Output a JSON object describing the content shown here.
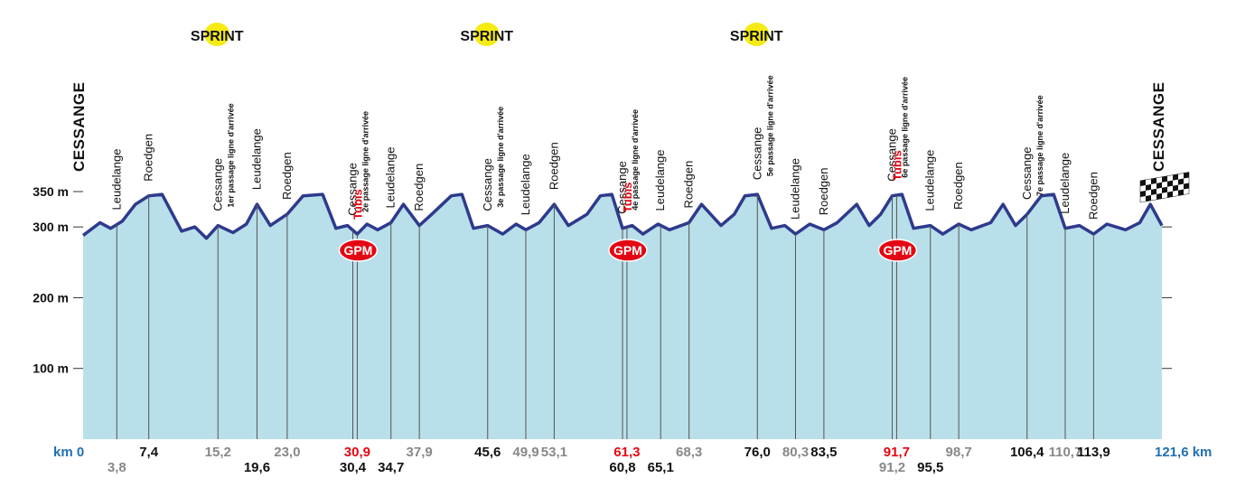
{
  "chart_data": {
    "type": "area",
    "title": "",
    "xlabel": "",
    "ylabel": "",
    "xlim": [
      0,
      121.6
    ],
    "ylim": [
      0,
      350
    ],
    "y_ticks": [
      {
        "value": 350,
        "label": "350 m"
      },
      {
        "value": 300,
        "label": "300 m"
      },
      {
        "value": 200,
        "label": "200 m"
      },
      {
        "value": 100,
        "label": "100 m"
      }
    ],
    "start_km_label": "km 0",
    "end_km_label": "121,6 km",
    "start_place": "CESSANGE",
    "finish_place": "CESSANGE",
    "colors": {
      "fill": "#b9dfea",
      "line": "#2e3a8c",
      "marker": "#555555",
      "grey_km": "#888888",
      "red_km": "#e30613",
      "sprint_bg": "#f5ea14",
      "gpm_bg": "#e30613",
      "blue_km": "#1f6fb5"
    },
    "elevation": {
      "x": [
        0,
        1.9,
        3.1,
        4.4,
        5.9,
        7.4,
        8.9,
        11.1,
        12.6,
        13.9,
        15.2,
        16.9,
        18.4,
        19.6,
        21.1,
        23.0,
        24.8,
        27.0,
        28.5,
        29.8,
        30.9,
        32.0,
        33.2,
        34.7,
        36.1,
        37.9,
        39.3,
        41.5,
        42.7,
        44.0,
        45.6,
        47.3,
        48.8,
        49.9,
        51.4,
        53.1,
        54.7,
        56.8,
        58.3,
        59.6,
        60.8,
        61.9,
        63.1,
        64.8,
        66.1,
        68.3,
        69.7,
        71.9,
        73.4,
        74.6,
        76.0,
        77.6,
        79.1,
        80.3,
        81.9,
        83.5,
        85.0,
        87.2,
        88.6,
        89.9,
        91.2,
        92.3,
        93.6,
        95.5,
        96.9,
        98.7,
        100.1,
        102.3,
        103.7,
        105.1,
        106.4,
        108.0,
        109.4,
        110.7,
        112.3,
        113.9,
        115.4,
        117.5,
        119.1,
        120.3,
        121.6
      ],
      "y": [
        288,
        306,
        298,
        308,
        332,
        344,
        346,
        294,
        300,
        284,
        302,
        292,
        304,
        332,
        302,
        318,
        344,
        346,
        298,
        302,
        290,
        304,
        296,
        306,
        332,
        302,
        318,
        344,
        346,
        298,
        302,
        290,
        304,
        296,
        306,
        332,
        302,
        318,
        344,
        346,
        298,
        302,
        290,
        304,
        296,
        306,
        332,
        302,
        318,
        344,
        346,
        298,
        302,
        290,
        304,
        296,
        306,
        332,
        302,
        318,
        344,
        346,
        298,
        302,
        290,
        304,
        296,
        306,
        332,
        302,
        318,
        344,
        346,
        298,
        302,
        290,
        304,
        296,
        306,
        332,
        302
      ]
    },
    "checkpoints": [
      {
        "km": 3.8,
        "km_label": "3,8",
        "km_style": "grey",
        "label_row": "low",
        "place": "Leudelange",
        "passage": "",
        "tubis": false,
        "gpm": false,
        "sprint": false
      },
      {
        "km": 7.4,
        "km_label": "7,4",
        "km_style": "black",
        "label_row": "high",
        "place": "Roedgen",
        "passage": "",
        "tubis": false,
        "gpm": false,
        "sprint": true
      },
      {
        "km": 15.2,
        "km_label": "15,2",
        "km_style": "grey",
        "label_row": "high",
        "place": "Cessange",
        "passage": "1er passage ligne d'arrivée",
        "tubis": false,
        "gpm": false,
        "sprint": true
      },
      {
        "km": 19.6,
        "km_label": "19,6",
        "km_style": "black",
        "label_row": "low",
        "place": "Leudelange",
        "passage": "",
        "tubis": false,
        "gpm": false,
        "sprint": false
      },
      {
        "km": 23.0,
        "km_label": "23,0",
        "km_style": "grey",
        "label_row": "high",
        "place": "Roedgen",
        "passage": "",
        "tubis": false,
        "gpm": false,
        "sprint": false
      },
      {
        "km": 30.4,
        "km_label": "30,4",
        "km_style": "black",
        "label_row": "low",
        "place": "Cessange",
        "passage": "2e passage ligne d'arrivée",
        "tubis": false,
        "gpm": false,
        "sprint": false
      },
      {
        "km": 30.9,
        "km_label": "30,9",
        "km_style": "red",
        "label_row": "high",
        "place": "",
        "passage": "",
        "tubis": true,
        "gpm": true,
        "sprint": false
      },
      {
        "km": 34.7,
        "km_label": "34,7",
        "km_style": "black",
        "label_row": "low",
        "place": "Leudelange",
        "passage": "",
        "tubis": false,
        "gpm": false,
        "sprint": false
      },
      {
        "km": 37.9,
        "km_label": "37,9",
        "km_style": "grey",
        "label_row": "high",
        "place": "Roedgen",
        "passage": "",
        "tubis": false,
        "gpm": false,
        "sprint": false
      },
      {
        "km": 45.6,
        "km_label": "45,6",
        "km_style": "black",
        "label_row": "high",
        "place": "Cessange",
        "passage": "3e passage ligne d'arrivée",
        "tubis": false,
        "gpm": false,
        "sprint": true
      },
      {
        "km": 49.9,
        "km_label": "49,9",
        "km_style": "grey",
        "label_row": "high",
        "place": "Leudelange",
        "passage": "",
        "tubis": false,
        "gpm": false,
        "sprint": false
      },
      {
        "km": 53.1,
        "km_label": "53,1",
        "km_style": "grey",
        "label_row": "high",
        "place": "Roedgen",
        "passage": "",
        "tubis": false,
        "gpm": false,
        "sprint": false
      },
      {
        "km": 60.8,
        "km_label": "60,8",
        "km_style": "black",
        "label_row": "low",
        "place": "Cessange",
        "passage": "4e passage ligne d'arrivée",
        "tubis": false,
        "gpm": false,
        "sprint": false
      },
      {
        "km": 61.3,
        "km_label": "61,3",
        "km_style": "red",
        "label_row": "high",
        "place": "",
        "passage": "",
        "tubis": true,
        "gpm": true,
        "sprint": false
      },
      {
        "km": 65.1,
        "km_label": "65,1",
        "km_style": "black",
        "label_row": "low",
        "place": "Leudelange",
        "passage": "",
        "tubis": false,
        "gpm": false,
        "sprint": false
      },
      {
        "km": 68.3,
        "km_label": "68,3",
        "km_style": "grey",
        "label_row": "high",
        "place": "Roedgen",
        "passage": "",
        "tubis": false,
        "gpm": false,
        "sprint": false
      },
      {
        "km": 76.0,
        "km_label": "76,0",
        "km_style": "black",
        "label_row": "high",
        "place": "Cessange",
        "passage": "5e passage ligne d'arrivée",
        "tubis": false,
        "gpm": false,
        "sprint": true
      },
      {
        "km": 80.3,
        "km_label": "80,3",
        "km_style": "grey",
        "label_row": "high",
        "place": "Leudelange",
        "passage": "",
        "tubis": false,
        "gpm": false,
        "sprint": false
      },
      {
        "km": 83.5,
        "km_label": "83,5",
        "km_style": "black",
        "label_row": "high",
        "place": "Roedgen",
        "passage": "",
        "tubis": false,
        "gpm": false,
        "sprint": false
      },
      {
        "km": 91.2,
        "km_label": "91,2",
        "km_style": "grey",
        "label_row": "low",
        "place": "Cessange",
        "passage": "6e passage ligne d'arrivée",
        "tubis": false,
        "gpm": false,
        "sprint": false
      },
      {
        "km": 91.7,
        "km_label": "91,7",
        "km_style": "red",
        "label_row": "high",
        "place": "",
        "passage": "",
        "tubis": true,
        "gpm": true,
        "sprint": false
      },
      {
        "km": 95.5,
        "km_label": "95,5",
        "km_style": "black",
        "label_row": "low",
        "place": "Leudelange",
        "passage": "",
        "tubis": false,
        "gpm": false,
        "sprint": false
      },
      {
        "km": 98.7,
        "km_label": "98,7",
        "km_style": "grey",
        "label_row": "high",
        "place": "Roedgen",
        "passage": "",
        "tubis": false,
        "gpm": false,
        "sprint": false
      },
      {
        "km": 106.4,
        "km_label": "106,4",
        "km_style": "black",
        "label_row": "high",
        "place": "Cessange",
        "passage": "7e passage ligne d'arrivée",
        "tubis": false,
        "gpm": false,
        "sprint": false
      },
      {
        "km": 110.7,
        "km_label": "110,7",
        "km_style": "grey",
        "label_row": "high",
        "place": "Leudelange",
        "passage": "",
        "tubis": false,
        "gpm": false,
        "sprint": false
      },
      {
        "km": 113.9,
        "km_label": "113,9",
        "km_style": "black",
        "label_row": "high",
        "place": "Roedgen",
        "passage": "",
        "tubis": false,
        "gpm": false,
        "sprint": false
      }
    ],
    "sprint_label": "SPRINT",
    "gpm_label": "GPM",
    "tubis_label": "Tubis",
    "finish_flag_icon": "checkered-flag-icon"
  }
}
